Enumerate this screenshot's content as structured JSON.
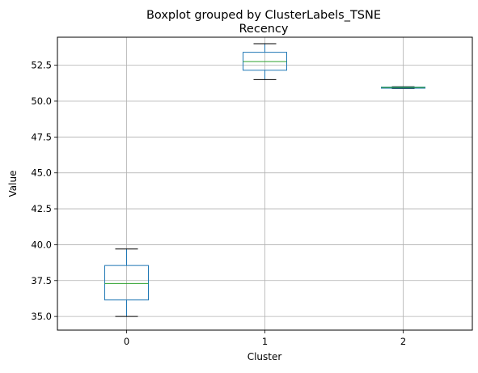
{
  "chart_data": {
    "type": "boxplot",
    "suptitle": "Boxplot grouped by ClusterLabels_TSNE",
    "title": "Recency",
    "xlabel": "Cluster",
    "ylabel": "Value",
    "categories": [
      "0",
      "1",
      "2"
    ],
    "ylim": [
      34.05,
      54.45
    ],
    "yticks": [
      "35.0",
      "37.5",
      "40.0",
      "42.5",
      "45.0",
      "47.5",
      "50.0",
      "52.5"
    ],
    "ytick_values": [
      35.0,
      37.5,
      40.0,
      42.5,
      45.0,
      47.5,
      50.0,
      52.5
    ],
    "boxes": [
      {
        "category": "0",
        "whisker_low": 35.0,
        "q1": 36.15,
        "median": 37.3,
        "q3": 38.55,
        "whisker_high": 39.7
      },
      {
        "category": "1",
        "whisker_low": 51.5,
        "q1": 52.15,
        "median": 52.75,
        "q3": 53.4,
        "whisker_high": 54.0
      },
      {
        "category": "2",
        "whisker_low": 50.88,
        "q1": 50.9,
        "median": 50.95,
        "q3": 50.97,
        "whisker_high": 51.0
      }
    ],
    "grid": true,
    "colors": {
      "box": "#1f77b4",
      "median": "#2ca02c",
      "whisker_cap": "#000000",
      "grid": "#b0b0b0"
    }
  }
}
